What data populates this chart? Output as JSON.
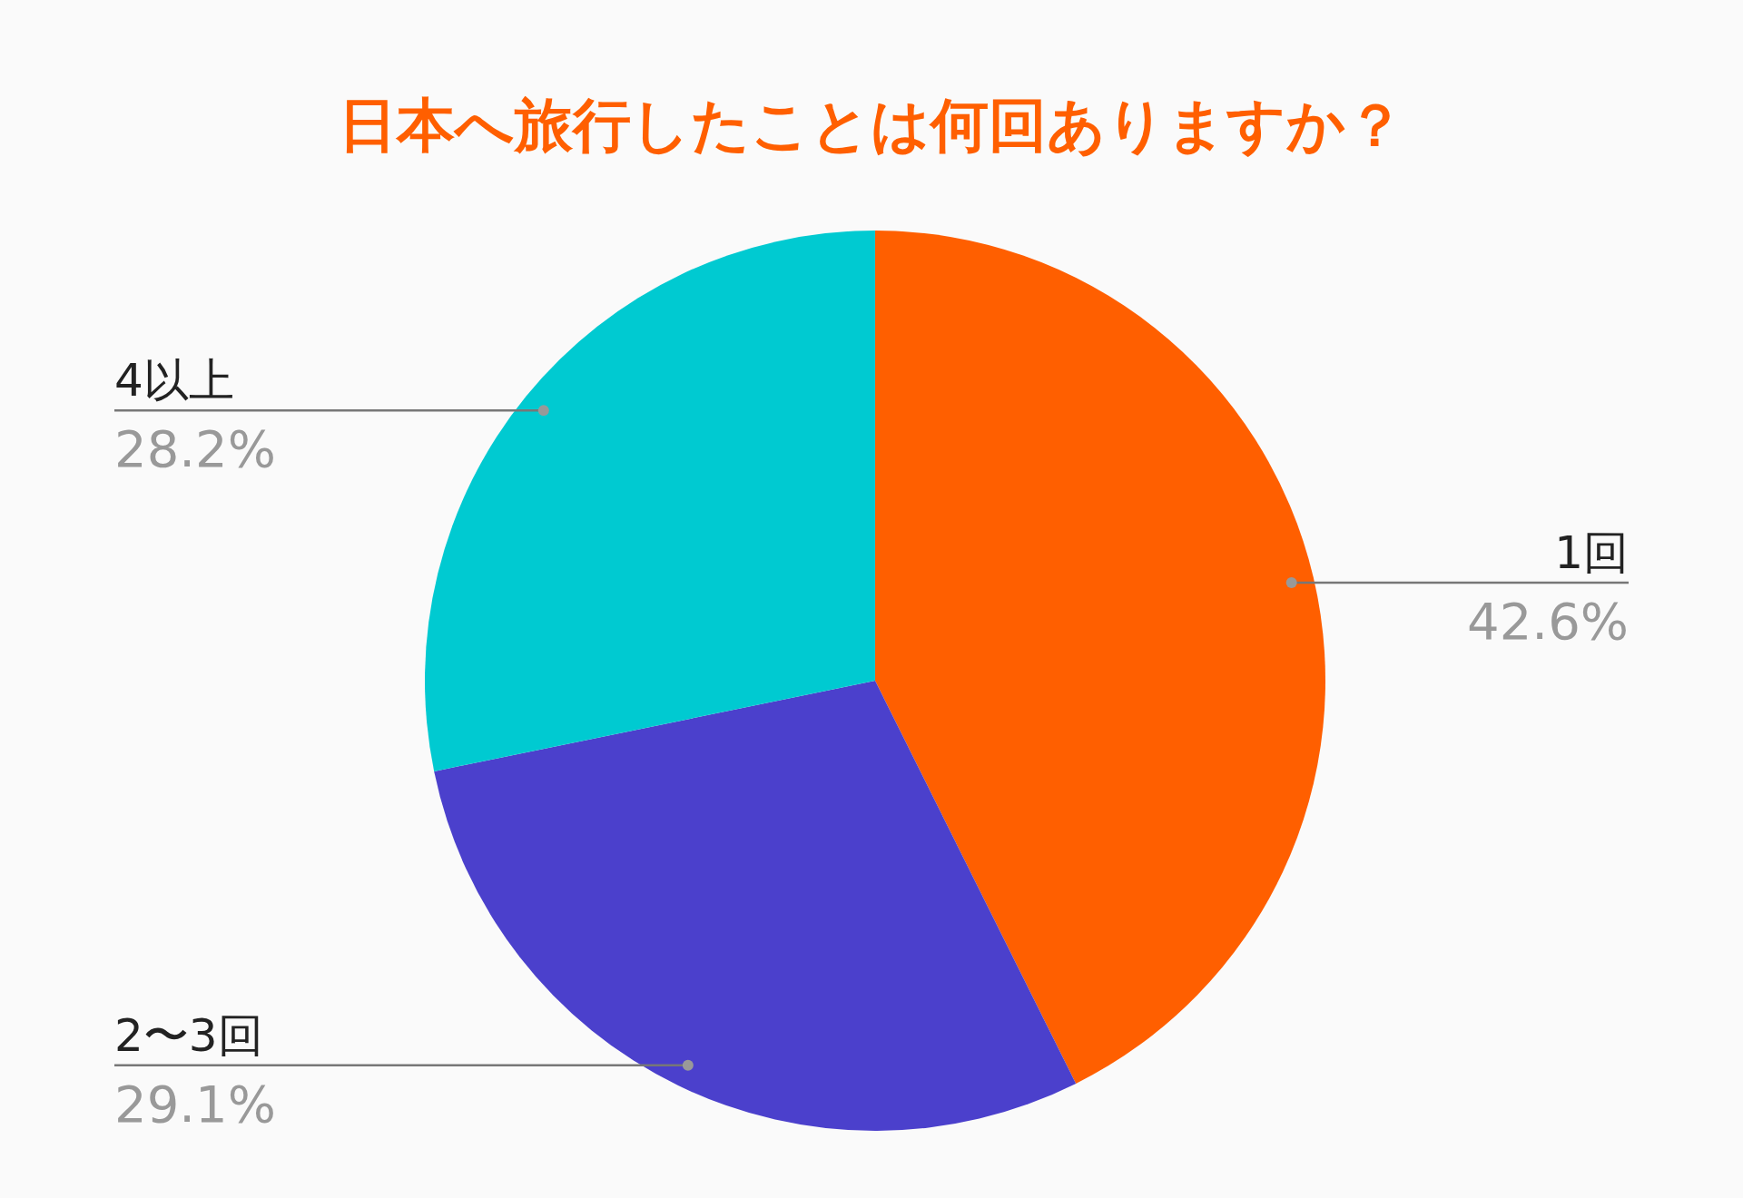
{
  "chart_data": {
    "type": "pie",
    "title": "日本へ旅行したことは何回ありますか？",
    "categories": [
      "1回",
      "2〜3回",
      "4以上"
    ],
    "values": [
      42.6,
      29.1,
      28.2
    ],
    "value_labels": [
      "42.6%",
      "29.1%",
      "28.2%"
    ],
    "colors": [
      "#ff5f00",
      "#4b40cc",
      "#00cad1"
    ],
    "legend": false
  }
}
